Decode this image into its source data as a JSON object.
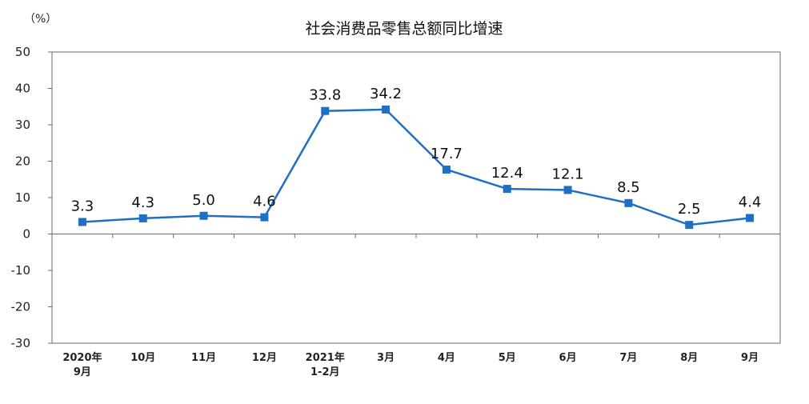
{
  "chart_data": {
    "type": "line",
    "title": "社会消费品零售总额同比增速",
    "unit_label": "（%）",
    "categories": [
      [
        "2020年",
        "9月"
      ],
      [
        "10月"
      ],
      [
        "11月"
      ],
      [
        "12月"
      ],
      [
        "2021年",
        "1-2月"
      ],
      [
        "3月"
      ],
      [
        "4月"
      ],
      [
        "5月"
      ],
      [
        "6月"
      ],
      [
        "7月"
      ],
      [
        "8月"
      ],
      [
        "9月"
      ]
    ],
    "series": [
      {
        "values": [
          3.3,
          4.3,
          5.0,
          4.6,
          33.8,
          34.2,
          17.7,
          12.4,
          12.1,
          8.5,
          2.5,
          4.4
        ],
        "labels": [
          "3.3",
          "4.3",
          "5.0",
          "4.6",
          "33.8",
          "34.2",
          "17.7",
          "12.4",
          "12.1",
          "8.5",
          "2.5",
          "4.4"
        ],
        "color": "#1f6fc5"
      }
    ],
    "y_ticks": [
      "50",
      "40",
      "30",
      "20",
      "10",
      "0",
      "-10",
      "-20",
      "-30"
    ],
    "ylim": [
      -30,
      50
    ],
    "grid": false,
    "legend": "none"
  }
}
